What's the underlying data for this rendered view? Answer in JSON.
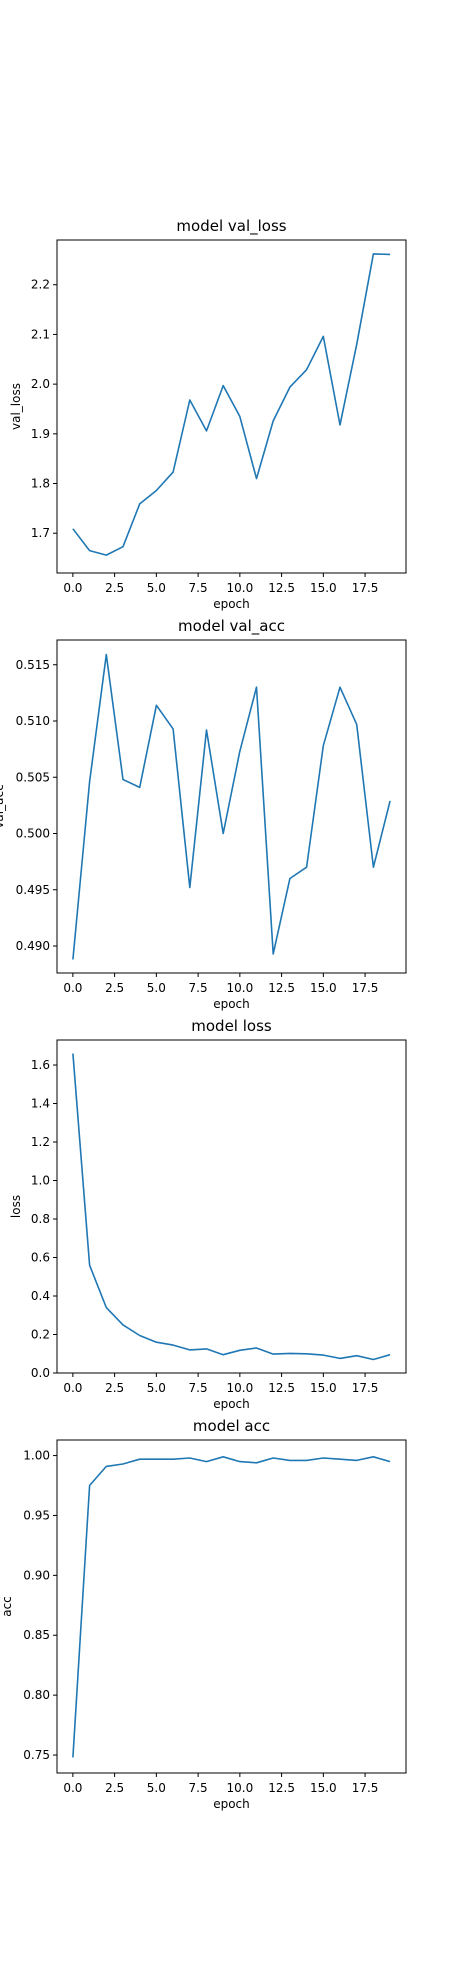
{
  "colors": {
    "series": "#1f77b4",
    "axes": "#000000",
    "background": "#ffffff"
  },
  "chart_data": [
    {
      "type": "line",
      "title": "model val_loss",
      "xlabel": "epoch",
      "ylabel": "val_loss",
      "xlim": [
        -0.95,
        19.95
      ],
      "ylim": [
        1.62,
        2.29
      ],
      "xticks": [
        0,
        2.5,
        5,
        7.5,
        10,
        12.5,
        15,
        17.5
      ],
      "xtick_labels": [
        "0.0",
        "2.5",
        "5.0",
        "7.5",
        "10.0",
        "12.5",
        "15.0",
        "17.5"
      ],
      "yticks": [
        1.7,
        1.8,
        1.9,
        2.0,
        2.1,
        2.2
      ],
      "ytick_labels": [
        "1.7",
        "1.8",
        "1.9",
        "2.0",
        "2.1",
        "2.2"
      ],
      "grid": false,
      "x": [
        0,
        1,
        2,
        3,
        4,
        5,
        6,
        7,
        8,
        9,
        10,
        11,
        12,
        13,
        14,
        15,
        16,
        17,
        18,
        19
      ],
      "y": [
        1.709,
        1.665,
        1.656,
        1.673,
        1.759,
        1.786,
        1.823,
        1.968,
        1.906,
        1.997,
        1.935,
        1.81,
        1.926,
        1.994,
        2.029,
        2.096,
        1.918,
        2.08,
        2.262,
        2.261
      ]
    },
    {
      "type": "line",
      "title": "model val_acc",
      "xlabel": "epoch",
      "ylabel": "val_acc",
      "xlim": [
        -0.95,
        19.95
      ],
      "ylim": [
        0.4876,
        0.5172
      ],
      "xticks": [
        0,
        2.5,
        5,
        7.5,
        10,
        12.5,
        15,
        17.5
      ],
      "xtick_labels": [
        "0.0",
        "2.5",
        "5.0",
        "7.5",
        "10.0",
        "12.5",
        "15.0",
        "17.5"
      ],
      "yticks": [
        0.49,
        0.495,
        0.5,
        0.505,
        0.51,
        0.515
      ],
      "ytick_labels": [
        "0.490",
        "0.495",
        "0.500",
        "0.505",
        "0.510",
        "0.515"
      ],
      "grid": false,
      "x": [
        0,
        1,
        2,
        3,
        4,
        5,
        6,
        7,
        8,
        9,
        10,
        11,
        12,
        13,
        14,
        15,
        16,
        17,
        18,
        19
      ],
      "y": [
        0.4888,
        0.5046,
        0.5159,
        0.5048,
        0.5041,
        0.5114,
        0.5093,
        0.4952,
        0.5092,
        0.5,
        0.5073,
        0.513,
        0.4893,
        0.496,
        0.497,
        0.5078,
        0.513,
        0.5097,
        0.497,
        0.5029
      ]
    },
    {
      "type": "line",
      "title": "model loss",
      "xlabel": "epoch",
      "ylabel": "loss",
      "xlim": [
        -0.95,
        19.95
      ],
      "ylim": [
        0,
        1.73
      ],
      "xticks": [
        0,
        2.5,
        5,
        7.5,
        10,
        12.5,
        15,
        17.5
      ],
      "xtick_labels": [
        "0.0",
        "2.5",
        "5.0",
        "7.5",
        "10.0",
        "12.5",
        "15.0",
        "17.5"
      ],
      "yticks": [
        0.0,
        0.2,
        0.4,
        0.6,
        0.8,
        1.0,
        1.2,
        1.4,
        1.6
      ],
      "ytick_labels": [
        "0.0",
        "0.2",
        "0.4",
        "0.6",
        "0.8",
        "1.0",
        "1.2",
        "1.4",
        "1.6"
      ],
      "grid": false,
      "x": [
        0,
        1,
        2,
        3,
        4,
        5,
        6,
        7,
        8,
        9,
        10,
        11,
        12,
        13,
        14,
        15,
        16,
        17,
        18,
        19
      ],
      "y": [
        1.66,
        0.56,
        0.34,
        0.25,
        0.195,
        0.16,
        0.145,
        0.12,
        0.125,
        0.095,
        0.118,
        0.13,
        0.098,
        0.102,
        0.1,
        0.093,
        0.076,
        0.09,
        0.07,
        0.095
      ]
    },
    {
      "type": "line",
      "title": "model acc",
      "xlabel": "epoch",
      "ylabel": "acc",
      "xlim": [
        -0.95,
        19.95
      ],
      "ylim": [
        0.735,
        1.013
      ],
      "xticks": [
        0,
        2.5,
        5,
        7.5,
        10,
        12.5,
        15,
        17.5
      ],
      "xtick_labels": [
        "0.0",
        "2.5",
        "5.0",
        "7.5",
        "10.0",
        "12.5",
        "15.0",
        "17.5"
      ],
      "yticks": [
        0.75,
        0.8,
        0.85,
        0.9,
        0.95,
        1.0
      ],
      "ytick_labels": [
        "0.75",
        "0.80",
        "0.85",
        "0.90",
        "0.95",
        "1.00"
      ],
      "grid": false,
      "x": [
        0,
        1,
        2,
        3,
        4,
        5,
        6,
        7,
        8,
        9,
        10,
        11,
        12,
        13,
        14,
        15,
        16,
        17,
        18,
        19
      ],
      "y": [
        0.748,
        0.975,
        0.991,
        0.993,
        0.997,
        0.997,
        0.997,
        0.998,
        0.995,
        0.999,
        0.995,
        0.994,
        0.998,
        0.996,
        0.996,
        0.998,
        0.997,
        0.996,
        0.999,
        0.995
      ]
    }
  ]
}
